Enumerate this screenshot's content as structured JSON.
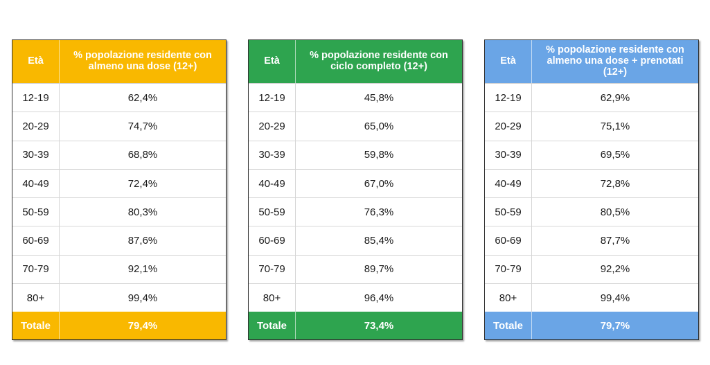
{
  "tables": [
    {
      "header_age": "Età",
      "header_value": "% popolazione residente con almeno una dose (12+)",
      "header_color": "#f9b800",
      "rows": [
        {
          "age": "12-19",
          "value": "62,4%"
        },
        {
          "age": "20-29",
          "value": "74,7%"
        },
        {
          "age": "30-39",
          "value": "68,8%"
        },
        {
          "age": "40-49",
          "value": "72,4%"
        },
        {
          "age": "50-59",
          "value": "80,3%"
        },
        {
          "age": "60-69",
          "value": "87,6%"
        },
        {
          "age": "70-79",
          "value": "92,1%"
        },
        {
          "age": "80+",
          "value": "99,4%"
        }
      ],
      "total_label": "Totale",
      "total_value": "79,4%"
    },
    {
      "header_age": "Età",
      "header_value": "% popolazione residente con ciclo completo (12+)",
      "header_color": "#2ea44f",
      "rows": [
        {
          "age": "12-19",
          "value": "45,8%"
        },
        {
          "age": "20-29",
          "value": "65,0%"
        },
        {
          "age": "30-39",
          "value": "59,8%"
        },
        {
          "age": "40-49",
          "value": "67,0%"
        },
        {
          "age": "50-59",
          "value": "76,3%"
        },
        {
          "age": "60-69",
          "value": "85,4%"
        },
        {
          "age": "70-79",
          "value": "89,7%"
        },
        {
          "age": "80+",
          "value": "96,4%"
        }
      ],
      "total_label": "Totale",
      "total_value": "73,4%"
    },
    {
      "header_age": "Età",
      "header_value": "% popolazione residente con almeno una dose + prenotati (12+)",
      "header_color": "#6aa5e6",
      "rows": [
        {
          "age": "12-19",
          "value": "62,9%"
        },
        {
          "age": "20-29",
          "value": "75,1%"
        },
        {
          "age": "30-39",
          "value": "69,5%"
        },
        {
          "age": "40-49",
          "value": "72,8%"
        },
        {
          "age": "50-59",
          "value": "80,5%"
        },
        {
          "age": "60-69",
          "value": "87,7%"
        },
        {
          "age": "70-79",
          "value": "92,2%"
        },
        {
          "age": "80+",
          "value": "99,4%"
        }
      ],
      "total_label": "Totale",
      "total_value": "79,7%"
    }
  ]
}
